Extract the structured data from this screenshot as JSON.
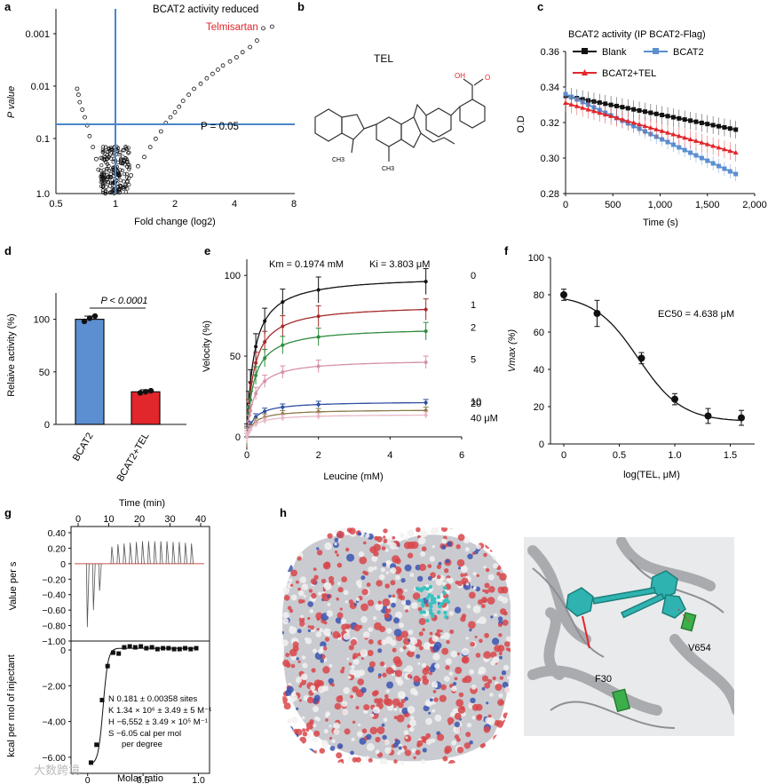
{
  "panels": {
    "a": {
      "letter": "a",
      "title": "BCAT2 activity reduced",
      "annotation": "Telmisartan",
      "threshold_label": "P = 0.05",
      "ylabel": "P value",
      "xlabel": "Fold change (log2)",
      "yticks": [
        "0.001",
        "0.01",
        "0.1",
        "1.0"
      ],
      "xticks": [
        "0.5",
        "1",
        "2",
        "4",
        "8"
      ]
    },
    "b": {
      "letter": "b",
      "title": "TEL",
      "atom_labels": {
        "oh": "OH",
        "o": "O",
        "ch3_1": "CH3",
        "ch3_2": "CH3"
      }
    },
    "c": {
      "letter": "c"
    },
    "d": {
      "letter": "d",
      "pvalue": "P < 0.0001"
    },
    "e": {
      "letter": "e",
      "km": "Km = 0.1974 mM",
      "ki": "Ki = 3.803 μM"
    },
    "f": {
      "letter": "f",
      "ec50": "EC50 = 4.638 μM"
    },
    "g": {
      "letter": "g",
      "fit": [
        "N 0.181 ± 0.00358 sites",
        "K 1.34 × 10⁶ ± 3.49 ± 5 M⁻¹",
        "H −6,552 ± 3.49 × 10⁵ M⁻¹",
        "S −6.05 cal per mol",
        "per degree"
      ]
    },
    "h": {
      "letter": "h",
      "residues": [
        "F30",
        "V654"
      ]
    }
  },
  "watermark": "大数跨境",
  "colors": {
    "blue": "#5b8fd1",
    "red": "#e2262b",
    "black": "#111111",
    "ref_line": "#4a86c8"
  },
  "chart_data": [
    {
      "id": "a",
      "type": "scatter",
      "title": "BCAT2 activity reduced",
      "xlabel": "Fold change (log2)",
      "ylabel": "P value",
      "x_scale": "log2",
      "y_scale": "log-reversed",
      "xlim": [
        0.5,
        8
      ],
      "ylim": [
        1.0,
        0.0006
      ],
      "reference_lines": {
        "x": 1,
        "y": 0.05
      },
      "highlight": {
        "label": "Telmisartan",
        "x": 5.6,
        "y": 0.0007
      },
      "right_arm": [
        [
          1.05,
          0.95
        ],
        [
          1.1,
          0.8
        ],
        [
          1.15,
          0.6
        ],
        [
          1.2,
          0.45
        ],
        [
          1.3,
          0.3
        ],
        [
          1.4,
          0.2
        ],
        [
          1.5,
          0.13
        ],
        [
          1.6,
          0.09
        ],
        [
          1.7,
          0.065
        ],
        [
          1.8,
          0.045
        ],
        [
          1.9,
          0.035
        ],
        [
          2.0,
          0.028
        ],
        [
          2.1,
          0.022
        ],
        [
          2.2,
          0.017
        ],
        [
          2.35,
          0.013
        ],
        [
          2.5,
          0.01
        ],
        [
          2.7,
          0.008
        ],
        [
          2.9,
          0.0063
        ],
        [
          3.1,
          0.0052
        ],
        [
          3.3,
          0.0043
        ],
        [
          3.5,
          0.0036
        ],
        [
          3.8,
          0.003
        ],
        [
          4.1,
          0.0025
        ],
        [
          4.4,
          0.002
        ],
        [
          4.8,
          0.0016
        ],
        [
          5.2,
          0.0012
        ],
        [
          5.6,
          0.0007
        ],
        [
          6.2,
          0.00065
        ]
      ],
      "left_arm": [
        [
          0.95,
          0.95
        ],
        [
          0.9,
          0.75
        ],
        [
          0.86,
          0.55
        ],
        [
          0.82,
          0.35
        ],
        [
          0.8,
          0.22
        ],
        [
          0.77,
          0.13
        ],
        [
          0.74,
          0.08
        ],
        [
          0.72,
          0.05
        ],
        [
          0.7,
          0.035
        ],
        [
          0.68,
          0.025
        ],
        [
          0.66,
          0.018
        ],
        [
          0.65,
          0.013
        ],
        [
          0.64,
          0.01
        ]
      ]
    },
    {
      "id": "c",
      "type": "line",
      "title": "BCAT2 activity (IP BCAT2-Flag)",
      "xlabel": "Time (s)",
      "ylabel": "O.D",
      "xlim": [
        0,
        2000
      ],
      "ylim": [
        0.28,
        0.36
      ],
      "xticks": [
        0,
        500,
        1000,
        1500,
        2000
      ],
      "xtick_labels": [
        "0",
        "500",
        "1,000",
        "1,500",
        "2,000"
      ],
      "yticks": [
        0.28,
        0.3,
        0.32,
        0.34,
        0.36
      ],
      "ytick_labels": [
        "0.28",
        "0.30",
        "0.32",
        "0.34",
        "0.36"
      ],
      "legend": "top",
      "series": [
        {
          "name": "Blank",
          "color": "#111111",
          "start": 0.335,
          "end": 0.316,
          "err": 0.005
        },
        {
          "name": "BCAT2",
          "color": "#5b8fd1",
          "start": 0.336,
          "end": 0.291,
          "err": 0.004
        },
        {
          "name": "BCAT2+TEL",
          "color": "#e2262b",
          "start": 0.331,
          "end": 0.303,
          "err": 0.005
        }
      ]
    },
    {
      "id": "d",
      "type": "bar",
      "ylabel": "Relaive activity (%)",
      "categories": [
        "BCAT2",
        "BCAT2+TEL"
      ],
      "values": [
        100,
        31
      ],
      "errors": [
        3,
        2
      ],
      "colors": [
        "#5b8fd1",
        "#e2262b"
      ],
      "ylim": [
        0,
        125
      ],
      "yticks": [
        0,
        50,
        100
      ],
      "points": [
        [
          98,
          101,
          103
        ],
        [
          30,
          31,
          32
        ]
      ],
      "annotation": "P < 0.0001"
    },
    {
      "id": "e",
      "type": "line",
      "xlabel": "Leucine (mM)",
      "ylabel": "Velocity (%)",
      "xlim": [
        0,
        6
      ],
      "ylim": [
        0,
        110
      ],
      "xticks": [
        0,
        2,
        4,
        6
      ],
      "yticks": [
        0,
        50,
        100
      ],
      "x_points": [
        0,
        0.05,
        0.1,
        0.25,
        0.5,
        1,
        2,
        5
      ],
      "series": [
        {
          "name": "0",
          "color": "#111111",
          "vmax": 100
        },
        {
          "name": "1",
          "color": "#a52a2a",
          "vmax": 82
        },
        {
          "name": "2",
          "color": "#2e8b3e",
          "vmax": 68
        },
        {
          "name": "5",
          "color": "#d490a8",
          "vmax": 48
        },
        {
          "name": "10",
          "color": "#2f4f9f",
          "vmax": 22
        },
        {
          "name": "20",
          "color": "#8b7a4a",
          "vmax": 17
        },
        {
          "name": "40 μM",
          "color": "#e8b8c8",
          "vmax": 14
        }
      ]
    },
    {
      "id": "f",
      "type": "line",
      "xlabel": "log(TEL, μM)",
      "ylabel": "Vmax (%)",
      "xlim": [
        0,
        1.7
      ],
      "ylim": [
        0,
        100
      ],
      "xticks": [
        0,
        0.5,
        1.0,
        1.5
      ],
      "xtick_labels": [
        "0",
        "0.5",
        "1.0",
        "1.5"
      ],
      "yticks": [
        0,
        20,
        40,
        60,
        80,
        100
      ],
      "x": [
        0,
        0.3,
        0.7,
        1.0,
        1.3,
        1.6
      ],
      "y": [
        80,
        70,
        46,
        24,
        15,
        14
      ],
      "err": [
        3,
        7,
        3,
        3,
        4,
        4
      ]
    },
    {
      "id": "g_top",
      "type": "line",
      "xlabel": "Time (min)",
      "ylabel": "Value per s",
      "xlim": [
        0,
        42
      ],
      "ylim": [
        -1.0,
        0.4
      ],
      "xticks": [
        0,
        10,
        20,
        30,
        40
      ],
      "yticks": [
        0.4,
        0.2,
        0,
        -0.2,
        -0.4,
        -0.6,
        -0.8,
        -1.0
      ],
      "yticks_labels": [
        "0.40",
        "0.20",
        "0",
        "−0.20",
        "−0.40",
        "−0.60",
        "−0.80",
        "−1.00"
      ],
      "injections": [
        [
          3,
          -0.82
        ],
        [
          5,
          -0.6
        ],
        [
          7,
          -0.35
        ],
        [
          11,
          0.22
        ],
        [
          13,
          0.25
        ],
        [
          15,
          0.26
        ],
        [
          17,
          0.27
        ],
        [
          19,
          0.28
        ],
        [
          21,
          0.29
        ],
        [
          23,
          0.29
        ],
        [
          25,
          0.29
        ],
        [
          27,
          0.29
        ],
        [
          29,
          0.29
        ],
        [
          31,
          0.28
        ],
        [
          33,
          0.28
        ],
        [
          35,
          0.27
        ],
        [
          37,
          0.26
        ]
      ]
    },
    {
      "id": "g_bottom",
      "type": "scatter",
      "xlabel": "Molar ratio",
      "ylabel": "kcal per mol of injectant",
      "xlim": [
        -0.15,
        1.1
      ],
      "ylim": [
        -6.9,
        0.5
      ],
      "xticks": [
        0,
        0.5,
        1.0
      ],
      "xtick_labels": [
        "0",
        "0.5",
        "1.0"
      ],
      "yticks": [
        0,
        -2,
        -4,
        -6
      ],
      "ytick_labels": [
        "0",
        "−2.00",
        "−4.00",
        "−6.00"
      ],
      "x": [
        0.03,
        0.08,
        0.13,
        0.18,
        0.23,
        0.28,
        0.33,
        0.38,
        0.43,
        0.48,
        0.53,
        0.58,
        0.63,
        0.68,
        0.73,
        0.78,
        0.83,
        0.88,
        0.93,
        0.98
      ],
      "y": [
        -6.3,
        -5.3,
        -2.8,
        -0.9,
        -0.15,
        -0.2,
        0.15,
        0.2,
        0.15,
        0.2,
        0.1,
        0.15,
        0.05,
        0.1,
        0.1,
        0.05,
        0.05,
        0.1,
        0.05,
        0.1
      ]
    }
  ]
}
